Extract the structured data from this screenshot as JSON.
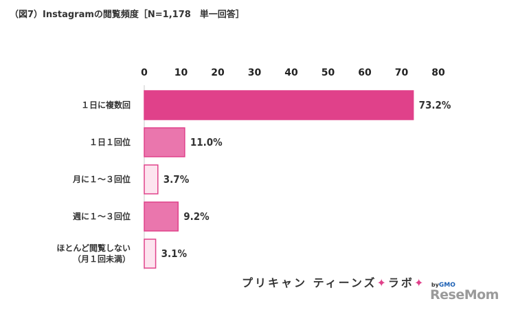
{
  "chart_data": {
    "type": "bar",
    "orientation": "horizontal",
    "title": "（図7）Instagramの閲覧頻度［N=1,178　単一回答］",
    "xlim": [
      0,
      80
    ],
    "xticks": [
      0,
      10,
      20,
      30,
      40,
      50,
      60,
      70,
      80
    ],
    "x_axis_position": "top",
    "grid": false,
    "categories": [
      [
        "１日に複数回"
      ],
      [
        "１日１回位"
      ],
      [
        "月に１～３回位"
      ],
      [
        "週に１～３回位"
      ],
      [
        "ほとんど閲覧しない",
        "（月１回未満）"
      ]
    ],
    "values": [
      73.2,
      11.0,
      3.7,
      9.2,
      3.1
    ],
    "value_labels": [
      "73.2%",
      "11.0%",
      "3.7%",
      "9.2%",
      "3.1%"
    ],
    "bar_colors": [
      "#e0418a",
      "#ea76ad",
      "#fde4ef",
      "#ea76ad",
      "#fde4ef"
    ],
    "bar_stroke": "#e0418a"
  },
  "branding": {
    "part1": "プリキャン",
    "part2": "ティーンズ",
    "star": "✦",
    "part3": "ラボ",
    "by": "by",
    "gmo": "GMO",
    "watermark": "ReseMom"
  }
}
